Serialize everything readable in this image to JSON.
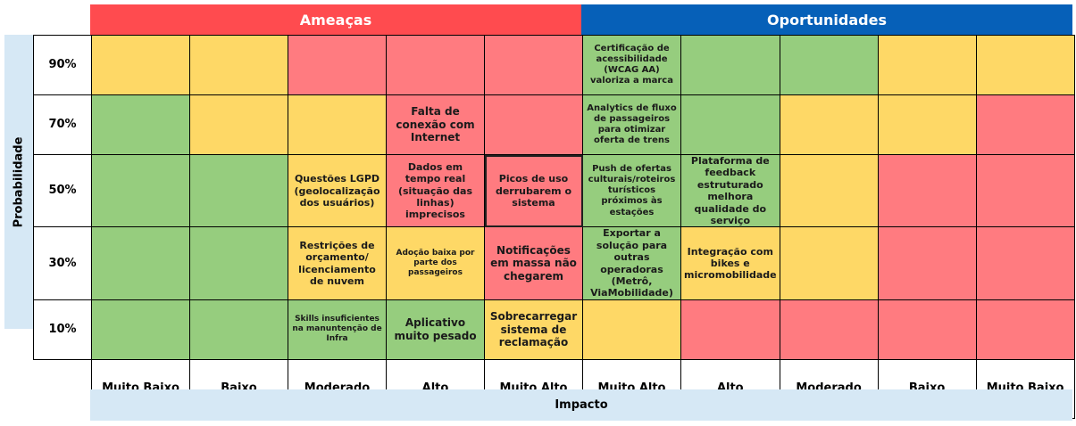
{
  "headers": {
    "threats": "Ameaças",
    "opportunities": "Oportunidades"
  },
  "axes": {
    "probability": "Probabilidade",
    "impact": "Impacto"
  },
  "rows": [
    {
      "label": "90%",
      "cells": [
        {
          "c": "y",
          "t": ""
        },
        {
          "c": "y",
          "t": ""
        },
        {
          "c": "r",
          "t": ""
        },
        {
          "c": "r",
          "t": ""
        },
        {
          "c": "r",
          "t": ""
        },
        {
          "c": "g",
          "t": "Certificação de acessibilidade (WCAG AA) valoriza a marca",
          "fs": "fs-s"
        },
        {
          "c": "g",
          "t": ""
        },
        {
          "c": "g",
          "t": ""
        },
        {
          "c": "y",
          "t": ""
        },
        {
          "c": "y",
          "t": ""
        }
      ]
    },
    {
      "label": "70%",
      "cells": [
        {
          "c": "g",
          "t": ""
        },
        {
          "c": "y",
          "t": ""
        },
        {
          "c": "y",
          "t": ""
        },
        {
          "c": "r",
          "t": "Falta de conexão com Internet",
          "fs": "fs-l"
        },
        {
          "c": "r",
          "t": ""
        },
        {
          "c": "g",
          "t": "Analytics de fluxo de passageiros para otimizar oferta de trens",
          "fs": "fs-s"
        },
        {
          "c": "g",
          "t": ""
        },
        {
          "c": "y",
          "t": ""
        },
        {
          "c": "y",
          "t": ""
        },
        {
          "c": "r",
          "t": ""
        }
      ]
    },
    {
      "label": "50%",
      "cells": [
        {
          "c": "g",
          "t": ""
        },
        {
          "c": "g",
          "t": ""
        },
        {
          "c": "y",
          "t": "Questões LGPD (geolocalização dos usuários)",
          "fs": "fs-m"
        },
        {
          "c": "r",
          "t": "Dados em tempo real (situação das linhas) imprecisos",
          "fs": "fs-m"
        },
        {
          "c": "r",
          "t": "Picos de uso derrubarem o sistema",
          "fs": "fs-m",
          "focus": true
        },
        {
          "c": "g",
          "t": "Push de ofertas culturais/roteiros turísticos próximos às estações",
          "fs": "fs-s"
        },
        {
          "c": "g",
          "t": "Plataforma de feedback estruturado melhora qualidade do serviço",
          "fs": "fs-m"
        },
        {
          "c": "y",
          "t": ""
        },
        {
          "c": "r",
          "t": ""
        },
        {
          "c": "r",
          "t": ""
        }
      ]
    },
    {
      "label": "30%",
      "cells": [
        {
          "c": "g",
          "t": ""
        },
        {
          "c": "g",
          "t": ""
        },
        {
          "c": "y",
          "t": "Restrições de orçamento/ licenciamento de nuvem",
          "fs": "fs-m"
        },
        {
          "c": "y",
          "t": "Adoção baixa por parte dos passageiros",
          "fs": "fs-xs"
        },
        {
          "c": "r",
          "t": "Notificações em massa não chegarem",
          "fs": "fs-l"
        },
        {
          "c": "g",
          "t": "Exportar a solução para outras operadoras (Metrô, ViaMobilidade)",
          "fs": "fs-m"
        },
        {
          "c": "y",
          "t": "Integração com bikes e micromobilidade",
          "fs": "fs-m"
        },
        {
          "c": "y",
          "t": ""
        },
        {
          "c": "r",
          "t": ""
        },
        {
          "c": "r",
          "t": ""
        }
      ]
    },
    {
      "label": "10%",
      "cells": [
        {
          "c": "g",
          "t": ""
        },
        {
          "c": "g",
          "t": ""
        },
        {
          "c": "g",
          "t": "Skills insuficientes na manuntenção de Infra",
          "fs": "fs-xs"
        },
        {
          "c": "g",
          "t": "Aplicativo muito pesado",
          "fs": "fs-l"
        },
        {
          "c": "y",
          "t": "Sobrecarregar sistema de reclamação",
          "fs": "fs-l"
        },
        {
          "c": "y",
          "t": ""
        },
        {
          "c": "r",
          "t": ""
        },
        {
          "c": "r",
          "t": ""
        },
        {
          "c": "r",
          "t": ""
        },
        {
          "c": "r",
          "t": ""
        }
      ]
    }
  ],
  "impact_labels": [
    "Muito Baixo",
    "Baixo",
    "Moderado",
    "Alto",
    "Muito Alto",
    "Muito Alto",
    "Alto",
    "Moderado",
    "Baixo",
    "Muito Baixo"
  ]
}
